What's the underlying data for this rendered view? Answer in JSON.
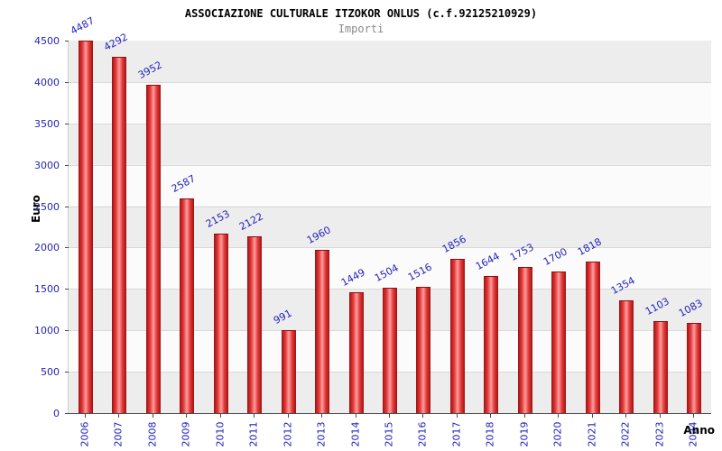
{
  "chart_data": {
    "type": "bar",
    "title": "ASSOCIAZIONE CULTURALE ITZOKOR ONLUS (c.f.92125210929)",
    "subtitle": "Importi",
    "xlabel": "Anno",
    "ylabel": "Euro",
    "categories": [
      "2006",
      "2007",
      "2008",
      "2009",
      "2010",
      "2011",
      "2012",
      "2013",
      "2014",
      "2015",
      "2016",
      "2017",
      "2018",
      "2019",
      "2020",
      "2021",
      "2022",
      "2023",
      "2024"
    ],
    "values": [
      4487,
      4292,
      3952,
      2587,
      2153,
      2122,
      991,
      1960,
      1449,
      1504,
      1516,
      1856,
      1644,
      1753,
      1700,
      1818,
      1354,
      1103,
      1083
    ],
    "ylim": [
      0,
      4500
    ],
    "yticks": [
      0,
      500,
      1000,
      1500,
      2000,
      2500,
      3000,
      3500,
      4000,
      4500
    ],
    "grid": true,
    "legend": "none",
    "bar_color": "#d62b2b",
    "bar_highlight_color": "#ff9e9e",
    "label_color": "#2222bb",
    "band_color": "#ededed",
    "title_color": "#000000",
    "subtitle_color": "#8a8a8a"
  }
}
